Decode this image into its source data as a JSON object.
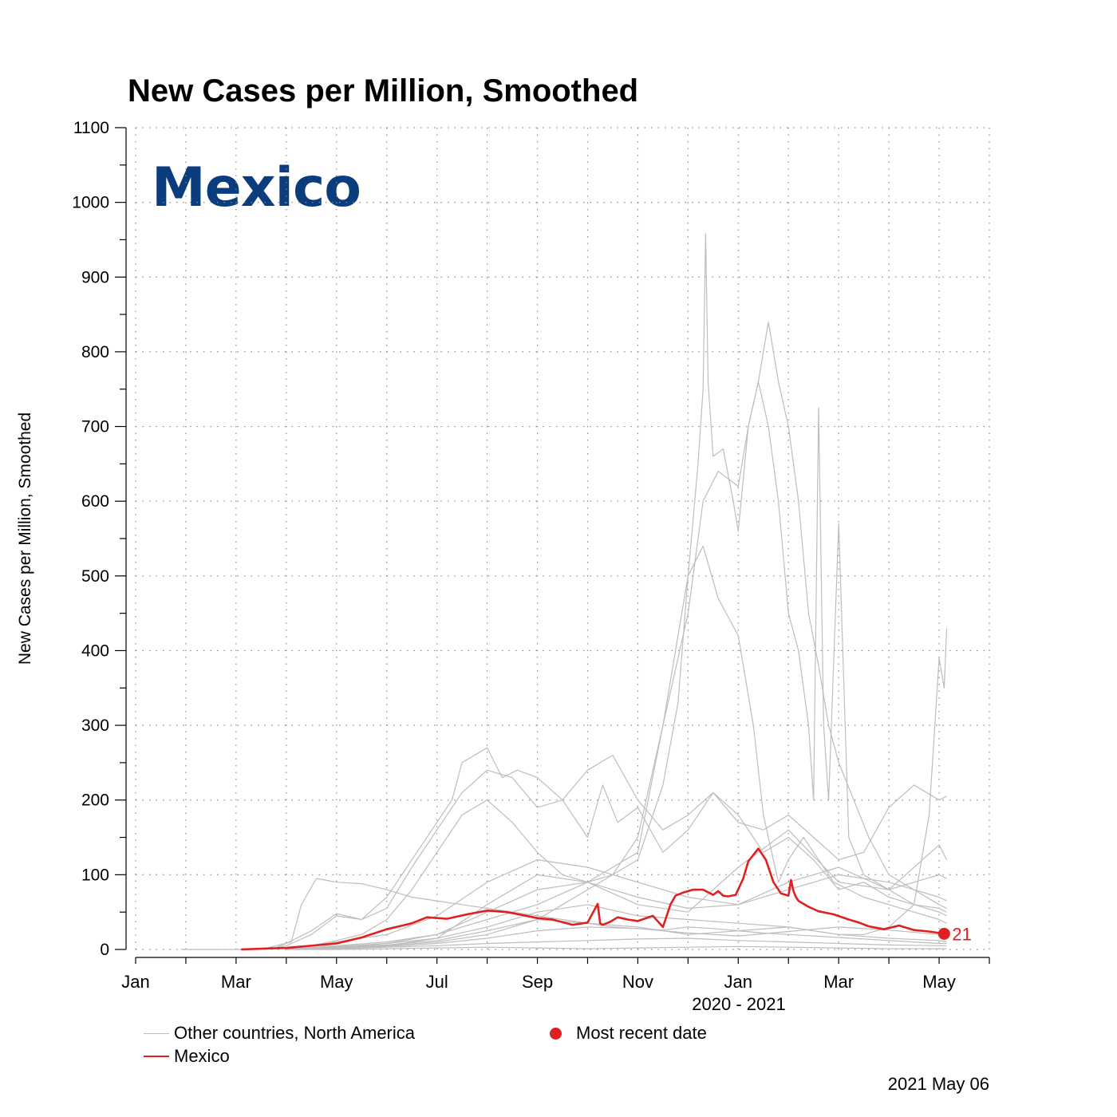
{
  "chart_data": {
    "type": "line",
    "title": "New Cases per Million, Smoothed",
    "ylabel": "New Cases per Million, Smoothed",
    "xlabel": "2020 - 2021",
    "ylim": [
      0,
      1100
    ],
    "xlim_months": [
      0,
      17
    ],
    "y_ticks": [
      0,
      100,
      200,
      300,
      400,
      500,
      600,
      700,
      800,
      900,
      1000,
      1100
    ],
    "x_ticks": [
      {
        "label": "Jan",
        "month": 0
      },
      {
        "label": "Mar",
        "month": 2
      },
      {
        "label": "May",
        "month": 4
      },
      {
        "label": "Jul",
        "month": 6
      },
      {
        "label": "Sep",
        "month": 8
      },
      {
        "label": "Nov",
        "month": 10
      },
      {
        "label": "Jan",
        "month": 12
      },
      {
        "label": "Mar",
        "month": 14
      },
      {
        "label": "May",
        "month": 16
      }
    ],
    "grid": true,
    "highlight_country": "Mexico",
    "highlight_color": "#e02020",
    "other_color": "#bdbdbd",
    "mexico": {
      "name": "Mexico",
      "months": [
        2.1,
        2.5,
        3.0,
        3.5,
        4.0,
        4.5,
        5.0,
        5.5,
        5.8,
        6.2,
        6.6,
        7.0,
        7.4,
        7.7,
        8.0,
        8.3,
        8.7,
        9.0,
        9.2,
        9.25,
        9.3,
        9.45,
        9.6,
        9.8,
        10.0,
        10.3,
        10.5,
        10.65,
        10.75,
        10.9,
        11.1,
        11.3,
        11.5,
        11.6,
        11.7,
        11.8,
        11.95,
        12.1,
        12.2,
        12.4,
        12.55,
        12.7,
        12.85,
        13.0,
        13.05,
        13.1,
        13.15,
        13.2,
        13.4,
        13.6,
        13.9,
        14.2,
        14.4,
        14.6,
        14.9,
        15.2,
        15.5,
        15.8,
        16.1
      ],
      "values": [
        0,
        1,
        2,
        5,
        8,
        16,
        27,
        35,
        43,
        41,
        47,
        52,
        50,
        46,
        42,
        40,
        33,
        36,
        61,
        35,
        33,
        37,
        43,
        40,
        38,
        45,
        30,
        60,
        72,
        76,
        80,
        80,
        73,
        78,
        72,
        71,
        73,
        95,
        118,
        135,
        120,
        90,
        75,
        72,
        93,
        78,
        70,
        65,
        57,
        51,
        47,
        40,
        36,
        31,
        27,
        32,
        26,
        24,
        21
      ]
    },
    "latest_value_label": "21",
    "others": [
      {
        "months": [
          2.5,
          3.1,
          3.3,
          3.6,
          4.0,
          4.5,
          5.0,
          5.5,
          6.0,
          6.5,
          7.0,
          7.5,
          8.0,
          8.5,
          9.0,
          9.5,
          10.0,
          10.5,
          11.0,
          11.5,
          12.0,
          12.5,
          13.0,
          13.5,
          14.0,
          14.5,
          15.0,
          15.5,
          16.0,
          16.15
        ],
        "values": [
          0,
          10,
          60,
          95,
          90,
          88,
          80,
          70,
          65,
          60,
          55,
          50,
          45,
          40,
          35,
          30,
          28,
          26,
          30,
          28,
          25,
          22,
          20,
          18,
          16,
          14,
          12,
          10,
          8,
          8
        ]
      },
      {
        "months": [
          2.7,
          3.0,
          3.5,
          4.0,
          4.5,
          5.0,
          5.5,
          6.0,
          6.5,
          7.0,
          7.5,
          8.0,
          8.5,
          9.0,
          9.5,
          10.0,
          10.5,
          11.0,
          11.5,
          12.0,
          12.5,
          13.0,
          13.5,
          14.0,
          14.5,
          15.0,
          15.5,
          16.0,
          16.15
        ],
        "values": [
          0,
          8,
          25,
          48,
          40,
          55,
          110,
          160,
          210,
          240,
          230,
          190,
          200,
          240,
          260,
          200,
          160,
          180,
          210,
          170,
          160,
          180,
          150,
          120,
          130,
          190,
          220,
          200,
          205
        ]
      },
      {
        "months": [
          2.6,
          3.0,
          3.5,
          4.0,
          4.5,
          5.0,
          5.5,
          6.0,
          6.3,
          6.5,
          7.0,
          7.3,
          7.6,
          8.0,
          8.5,
          9.0,
          9.3,
          9.6,
          10.0,
          10.5,
          11.0,
          11.5,
          12.0,
          12.5,
          13.0,
          13.5,
          14.0,
          14.5,
          15.0,
          15.5,
          16.0,
          16.15
        ],
        "values": [
          0,
          5,
          20,
          45,
          40,
          70,
          120,
          170,
          200,
          250,
          270,
          230,
          240,
          230,
          200,
          150,
          220,
          170,
          190,
          130,
          160,
          210,
          180,
          130,
          150,
          120,
          80,
          90,
          70,
          60,
          55,
          50
        ]
      },
      {
        "months": [
          3.0,
          3.5,
          4.0,
          4.5,
          5.0,
          5.5,
          6.0,
          6.5,
          7.0,
          7.5,
          8.0,
          8.5,
          9.0,
          9.5,
          10.0,
          10.5,
          11.0,
          11.3,
          11.6,
          12.0,
          12.3,
          12.5,
          12.8,
          13.0,
          13.3,
          13.6,
          13.9,
          14.2,
          14.5,
          15.0,
          15.5,
          16.0,
          16.15
        ],
        "values": [
          0,
          5,
          12,
          20,
          40,
          80,
          130,
          180,
          200,
          170,
          130,
          100,
          90,
          110,
          130,
          300,
          500,
          540,
          470,
          420,
          300,
          180,
          90,
          120,
          150,
          120,
          90,
          80,
          70,
          60,
          50,
          40,
          35
        ]
      },
      {
        "months": [
          3.0,
          4.0,
          5.0,
          6.0,
          7.0,
          8.0,
          9.0,
          9.5,
          10.0,
          10.5,
          10.8,
          11.0,
          11.2,
          11.3,
          11.35,
          11.4,
          11.5,
          11.7,
          11.9,
          12.0,
          12.2,
          12.4,
          12.6,
          12.8,
          13.0,
          13.2,
          13.4,
          13.6,
          13.8,
          14.0,
          14.3,
          14.6,
          15.0,
          15.5,
          16.0,
          16.15
        ],
        "values": [
          0,
          3,
          8,
          20,
          40,
          60,
          90,
          100,
          120,
          220,
          330,
          500,
          650,
          750,
          958,
          760,
          660,
          670,
          600,
          560,
          700,
          760,
          840,
          760,
          700,
          600,
          450,
          380,
          300,
          250,
          200,
          150,
          100,
          80,
          60,
          55
        ]
      },
      {
        "months": [
          3.0,
          4.0,
          5.0,
          6.0,
          7.0,
          8.0,
          8.5,
          9.0,
          9.5,
          10.0,
          10.5,
          11.0,
          11.3,
          11.6,
          12.0,
          12.2,
          12.4,
          12.6,
          12.8,
          13.0,
          13.2,
          13.4,
          13.5,
          13.6,
          13.7,
          13.8,
          14.0,
          14.2,
          14.5,
          15.0,
          15.5,
          16.0,
          16.15
        ],
        "values": [
          0,
          2,
          5,
          10,
          20,
          40,
          60,
          80,
          100,
          150,
          300,
          450,
          600,
          640,
          620,
          700,
          760,
          700,
          600,
          450,
          400,
          300,
          200,
          725,
          300,
          200,
          570,
          150,
          100,
          80,
          60,
          50,
          45
        ]
      },
      {
        "months": [
          3.0,
          4.0,
          5.0,
          6.0,
          7.0,
          8.0,
          9.0,
          10.0,
          11.0,
          12.0,
          13.0,
          13.5,
          14.0,
          14.5,
          15.0,
          15.5,
          15.8,
          16.0,
          16.1,
          16.15
        ],
        "values": [
          0,
          2,
          5,
          15,
          30,
          50,
          60,
          45,
          40,
          35,
          30,
          25,
          20,
          20,
          30,
          60,
          180,
          390,
          350,
          430
        ]
      },
      {
        "months": [
          3.0,
          4.0,
          5.0,
          6.0,
          7.0,
          8.0,
          9.0,
          10.0,
          11.0,
          12.0,
          13.0,
          14.0,
          15.0,
          16.0,
          16.15
        ],
        "values": [
          0,
          10,
          20,
          45,
          90,
          120,
          110,
          90,
          70,
          60,
          80,
          100,
          90,
          70,
          65
        ]
      },
      {
        "months": [
          3.0,
          4.0,
          5.0,
          6.0,
          7.0,
          8.0,
          9.0,
          10.0,
          11.0,
          12.0,
          13.0,
          14.0,
          15.0,
          16.0,
          16.15
        ],
        "values": [
          0,
          5,
          10,
          20,
          50,
          80,
          90,
          60,
          50,
          110,
          160,
          90,
          80,
          100,
          95
        ]
      },
      {
        "months": [
          3.0,
          4.0,
          5.0,
          6.0,
          7.0,
          8.0,
          9.0,
          10.0,
          11.0,
          12.0,
          13.0,
          14.0,
          15.0,
          16.0,
          16.15
        ],
        "values": [
          0,
          3,
          6,
          12,
          25,
          40,
          35,
          30,
          20,
          25,
          30,
          20,
          15,
          12,
          10
        ]
      },
      {
        "months": [
          3.0,
          4.0,
          5.0,
          6.0,
          7.0,
          8.0,
          9.0,
          10.0,
          11.0,
          12.0,
          13.0,
          14.0,
          15.0,
          16.0,
          16.15
        ],
        "values": [
          0,
          1,
          3,
          5,
          8,
          10,
          12,
          14,
          15,
          12,
          10,
          8,
          6,
          5,
          5
        ]
      },
      {
        "months": [
          3.0,
          4.0,
          5.0,
          6.0,
          7.0,
          8.0,
          9.0,
          10.0,
          11.0,
          12.0,
          13.0,
          14.0,
          15.0,
          16.0,
          16.15
        ],
        "values": [
          0,
          2,
          4,
          8,
          15,
          25,
          30,
          28,
          22,
          18,
          24,
          30,
          26,
          20,
          18
        ]
      },
      {
        "months": [
          3.0,
          4.0,
          5.0,
          6.0,
          7.0,
          8.0,
          9.0,
          10.0,
          11.0,
          12.0,
          13.0,
          14.0,
          15.0,
          16.0,
          16.15
        ],
        "values": [
          0,
          0,
          1,
          2,
          3,
          2,
          1,
          2,
          3,
          4,
          3,
          2,
          1,
          1,
          1
        ]
      },
      {
        "months": [
          3.0,
          4.0,
          5.0,
          6.0,
          7.0,
          8.0,
          9.0,
          10.0,
          11.0,
          12.0,
          13.0,
          14.0,
          15.0,
          16.0,
          16.15
        ],
        "values": [
          0,
          4,
          8,
          15,
          60,
          100,
          90,
          70,
          55,
          60,
          90,
          110,
          80,
          140,
          120
        ]
      }
    ],
    "legend": {
      "other_label": "Other countries, North America",
      "country_label": "Mexico",
      "marker_label": "Most recent date"
    },
    "date_stamp": "2021 May 06"
  }
}
